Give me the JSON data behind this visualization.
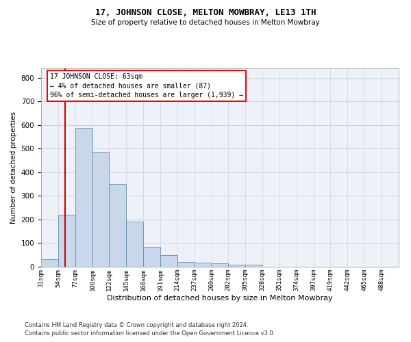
{
  "title": "17, JOHNSON CLOSE, MELTON MOWBRAY, LE13 1TH",
  "subtitle": "Size of property relative to detached houses in Melton Mowbray",
  "xlabel": "Distribution of detached houses by size in Melton Mowbray",
  "ylabel": "Number of detached properties",
  "bin_labels": [
    "31sqm",
    "54sqm",
    "77sqm",
    "100sqm",
    "122sqm",
    "145sqm",
    "168sqm",
    "191sqm",
    "214sqm",
    "237sqm",
    "260sqm",
    "282sqm",
    "305sqm",
    "328sqm",
    "351sqm",
    "374sqm",
    "397sqm",
    "419sqm",
    "442sqm",
    "465sqm",
    "488sqm"
  ],
  "bar_heights": [
    32,
    220,
    588,
    487,
    350,
    190,
    85,
    50,
    20,
    17,
    14,
    9,
    8,
    0,
    0,
    0,
    0,
    0,
    0,
    0,
    0
  ],
  "bar_color": "#c8d8ea",
  "bar_edge_color": "#6090b0",
  "grid_color": "#c8d4e4",
  "background_color": "#eef2f8",
  "annotation_box_text": "17 JOHNSON CLOSE: 63sqm\n← 4% of detached houses are smaller (87)\n96% of semi-detached houses are larger (1,939) →",
  "red_line_x": 63,
  "red_line_color": "#cc0000",
  "ylim": [
    0,
    840
  ],
  "yticks": [
    0,
    100,
    200,
    300,
    400,
    500,
    600,
    700,
    800
  ],
  "footer_line1": "Contains HM Land Registry data © Crown copyright and database right 2024.",
  "footer_line2": "Contains public sector information licensed under the Open Government Licence v3.0.",
  "bin_edges": [
    31,
    54,
    77,
    100,
    122,
    145,
    168,
    191,
    214,
    237,
    260,
    282,
    305,
    328,
    351,
    374,
    397,
    419,
    442,
    465,
    488,
    511
  ]
}
